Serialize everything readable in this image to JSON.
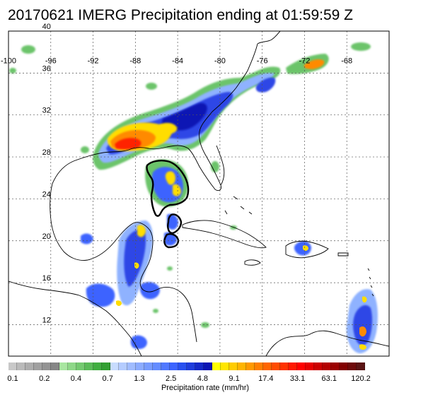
{
  "title": "20170621 IMERG Precipitation ending at 01:59:59 Z",
  "map": {
    "lon_range": [
      -100,
      -64
    ],
    "lat_range": [
      9,
      40
    ],
    "lon_labels": [
      "-100",
      "-96",
      "-92",
      "-88",
      "-84",
      "-80",
      "-76",
      "-72",
      "-68"
    ],
    "lon_values": [
      -100,
      -96,
      -92,
      -88,
      -84,
      -80,
      -76,
      -72,
      -68
    ],
    "lat_labels": [
      "40",
      "36",
      "32",
      "28",
      "24",
      "20",
      "16",
      "12"
    ],
    "lat_values": [
      40,
      36,
      32,
      28,
      24,
      20,
      16,
      12
    ],
    "gridlines": "dotted"
  },
  "colorbar": {
    "title": "Precipitation rate (mm/hr)",
    "tick_labels": [
      "0.1",
      "0.2",
      "0.4",
      "0.7",
      "1.3",
      "2.5",
      "4.8",
      "9.1",
      "17.4",
      "33.1",
      "63.1",
      "120.2"
    ],
    "colors": [
      "#c8c8c8",
      "#bababa",
      "#adadad",
      "#a0a0a0",
      "#939393",
      "#868686",
      "#a8e6a0",
      "#8ed888",
      "#74ca70",
      "#5abc58",
      "#40ae40",
      "#32a032",
      "#c8dcff",
      "#b4ccff",
      "#a0bcff",
      "#8cacff",
      "#789cff",
      "#648cff",
      "#5078ff",
      "#3c64ff",
      "#2850f0",
      "#1e3cdc",
      "#1428c8",
      "#0a14b4",
      "#ffff00",
      "#ffe600",
      "#ffcc00",
      "#ffb400",
      "#ff9900",
      "#ff7f00",
      "#ff6600",
      "#ff4c00",
      "#ff3300",
      "#ff1900",
      "#ff0000",
      "#e60000",
      "#cc0000",
      "#b40000",
      "#9b0000",
      "#820000",
      "#6e0a0a",
      "#5a1414"
    ]
  }
}
